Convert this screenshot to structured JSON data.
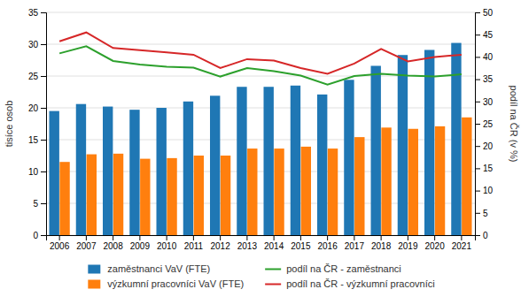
{
  "chart_data": {
    "type": "bar",
    "categories": [
      "2006",
      "2007",
      "2008",
      "2009",
      "2010",
      "2011",
      "2012",
      "2013",
      "2014",
      "2015",
      "2016",
      "2017",
      "2018",
      "2019",
      "2020",
      "2021"
    ],
    "series": [
      {
        "name": "zaměstnanci VaV (FTE)",
        "type": "bar",
        "values": [
          19.5,
          20.6,
          20.2,
          19.7,
          20.0,
          21.0,
          21.9,
          23.3,
          23.3,
          23.5,
          22.1,
          24.4,
          26.6,
          28.3,
          29.1,
          30.2
        ]
      },
      {
        "name": "výzkumní pracovníci VaV (FTE)",
        "type": "bar",
        "values": [
          11.5,
          12.7,
          12.8,
          12.0,
          12.1,
          12.5,
          12.5,
          13.6,
          13.6,
          13.9,
          13.6,
          15.4,
          16.9,
          16.7,
          17.1,
          18.5
        ]
      },
      {
        "name": "podíl na ČR - zaměstnanci",
        "type": "line",
        "axis": "y2",
        "values": [
          40.8,
          42.4,
          39.1,
          38.3,
          37.8,
          37.6,
          35.6,
          37.5,
          36.8,
          35.8,
          33.8,
          35.7,
          36.2,
          35.8,
          35.6,
          36.1
        ]
      },
      {
        "name": "podíl na ČR - výzkumní pracovníci",
        "type": "line",
        "axis": "y2",
        "values": [
          43.5,
          45.5,
          42.0,
          41.5,
          41.0,
          40.5,
          37.5,
          39.5,
          39.2,
          37.5,
          36.2,
          38.5,
          41.8,
          39.0,
          40.0,
          40.5
        ]
      }
    ],
    "ylabel": "tisíce osob",
    "y2label": "podíl na ČR (v %)",
    "ylim": [
      0,
      35
    ],
    "yticks": [
      0,
      5,
      10,
      15,
      20,
      25,
      30,
      35
    ],
    "y2lim": [
      0,
      50
    ],
    "y2ticks": [
      0,
      5,
      10,
      15,
      20,
      25,
      30,
      35,
      40,
      45,
      50
    ],
    "grid": true,
    "legend": "bottom"
  }
}
